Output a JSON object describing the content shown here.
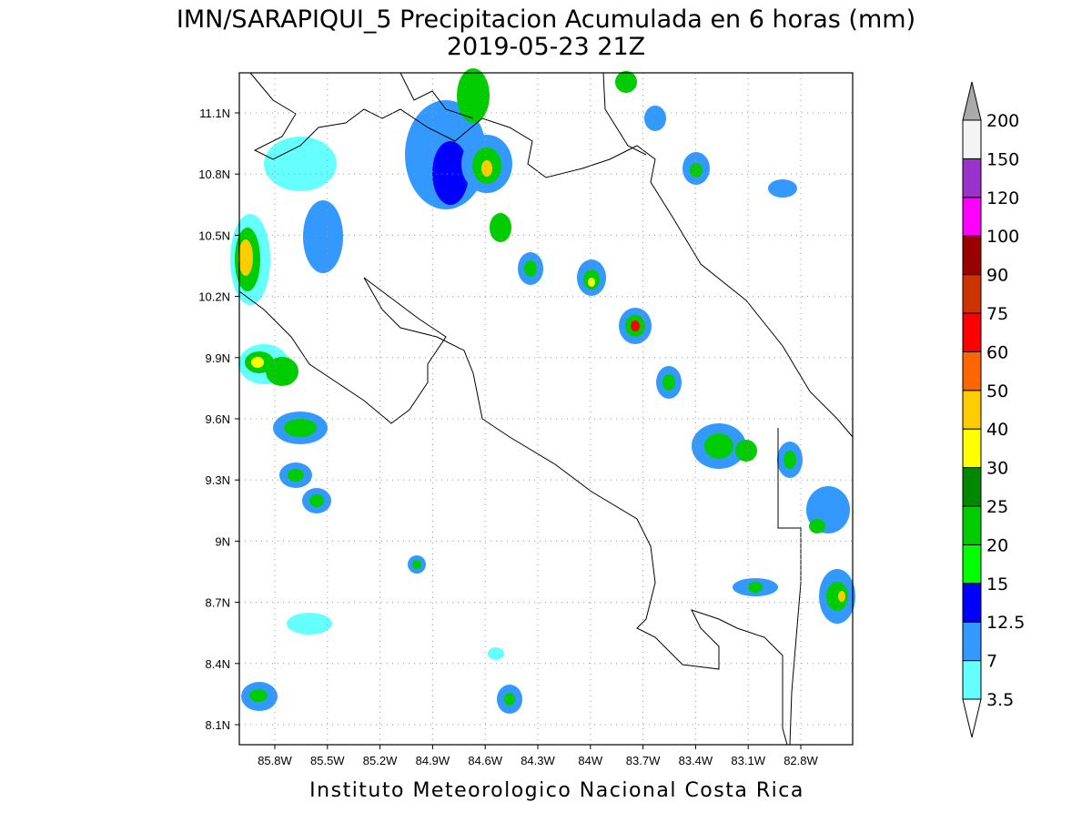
{
  "title": "IMN/SARAPIQUI_5 Precipitacion Acumulada en 6 horas (mm)",
  "subtitle": "2019-05-23 21Z",
  "map": {
    "lat_labels": [
      "11.1N",
      "10.8N",
      "10.5N",
      "10.2N",
      "9.9N",
      "9.6N",
      "9.3N",
      "9N",
      "8.7N",
      "8.4N",
      "8.1N"
    ],
    "lon_labels": [
      "85.8W",
      "85.5W",
      "85.2W",
      "84.9W",
      "84.6W",
      "84.3W",
      "84W",
      "83.7W",
      "83.4W",
      "83.1W",
      "82.8W"
    ]
  },
  "colorbar": {
    "levels": [
      3.5,
      7,
      12.5,
      15,
      20,
      25,
      30,
      40,
      50,
      60,
      75,
      90,
      100,
      120,
      150,
      200
    ],
    "colors": [
      "#ffffff",
      "#66ffff",
      "#3399ff",
      "#0000ff",
      "#00ff00",
      "#00cc00",
      "#008800",
      "#ffff00",
      "#ffcc00",
      "#ff6600",
      "#ff0000",
      "#cc3300",
      "#990000",
      "#ff00ff",
      "#9933cc",
      "#f4f4f4",
      "#aaaaaa"
    ]
  },
  "footer": "Instituto Meteorologico Nacional Costa Rica"
}
